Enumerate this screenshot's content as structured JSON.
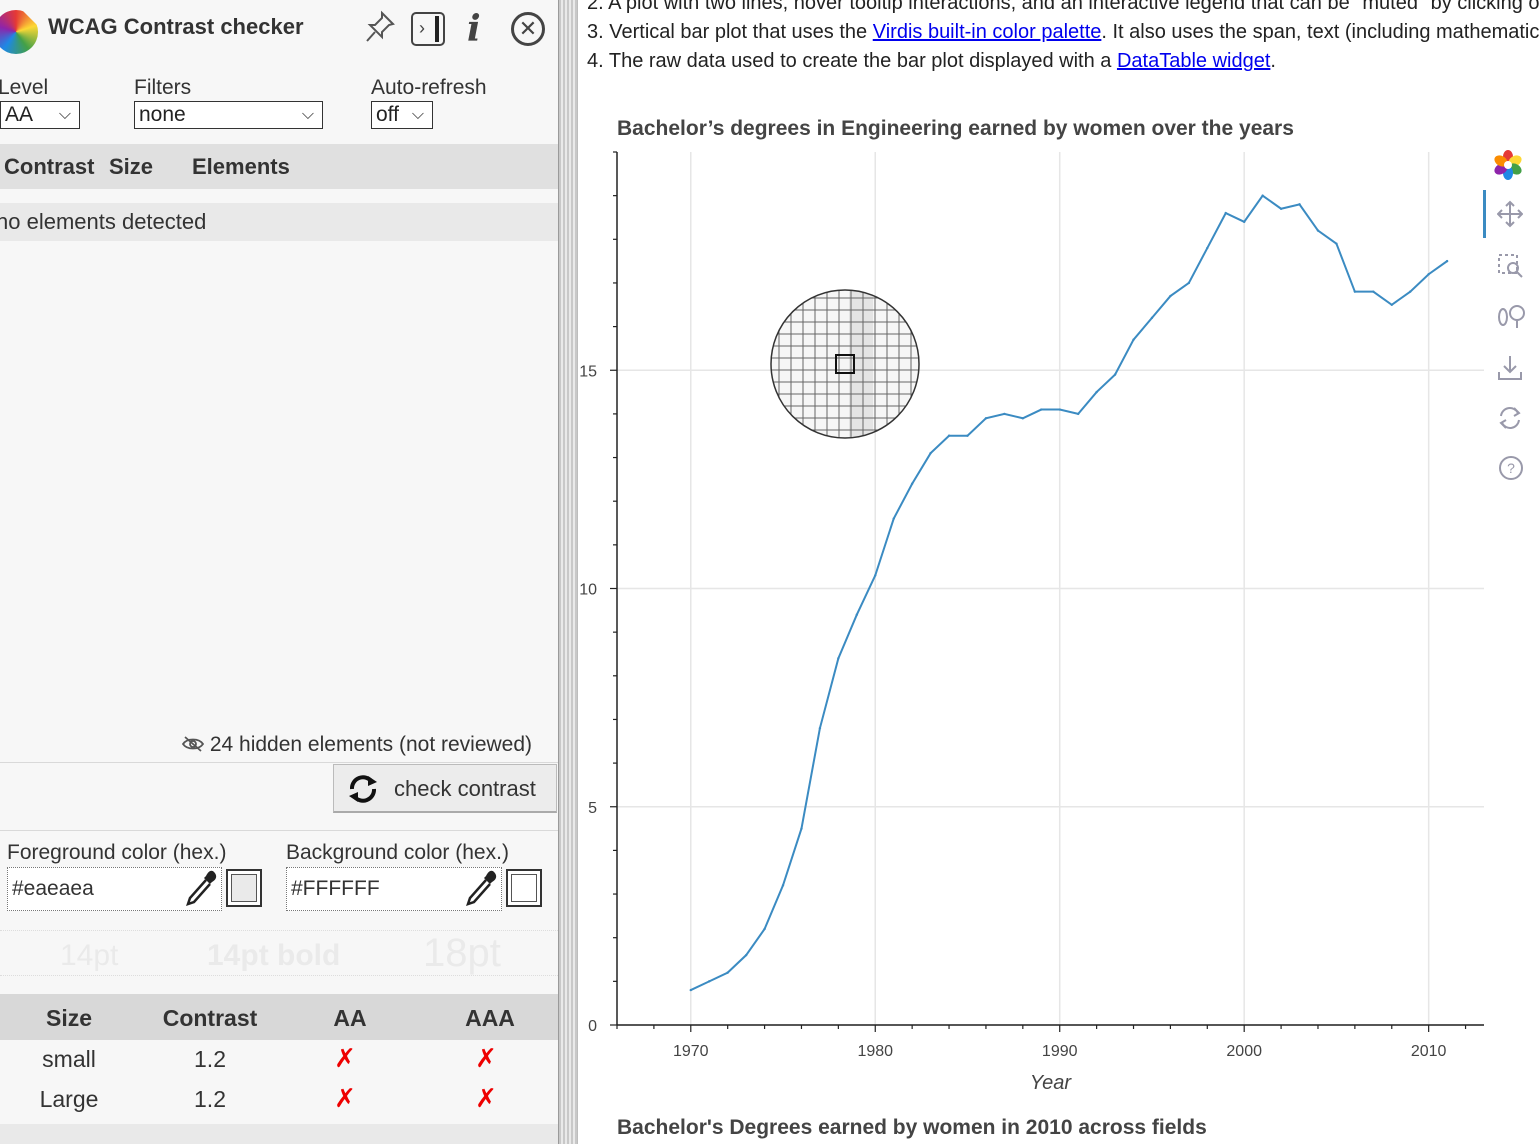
{
  "panel": {
    "title": "WCAG Contrast checker",
    "level_label": "Level",
    "level_value": "AA",
    "filters_label": "Filters",
    "filters_value": "none",
    "autorefresh_label": "Auto-refresh",
    "autorefresh_value": "off",
    "table_headers": [
      "Contrast",
      "Size",
      "Elements"
    ],
    "no_elements": "no elements detected",
    "hidden_note": "24 hidden elements (not reviewed)",
    "check_button": "check contrast",
    "fg_label": "Foreground color (hex.)",
    "fg_value": "#eaeaea",
    "bg_label": "Background color (hex.)",
    "bg_value": "#FFFFFF",
    "preview": [
      "14pt",
      "14pt bold",
      "18pt"
    ],
    "results_headers": [
      "Size",
      "Contrast",
      "AA",
      "AAA"
    ],
    "results": [
      {
        "size": "small",
        "contrast": "1.2",
        "aa": "✗",
        "aaa": "✗"
      },
      {
        "size": "Large",
        "contrast": "1.2",
        "aa": "✗",
        "aaa": "✗"
      }
    ],
    "fail_color": "#e00000",
    "fg_swatch": "#eaeaea",
    "bg_swatch": "#FFFFFF"
  },
  "page": {
    "item2": "2. A plot with two lines, hover tooltip interactions, and an interactive legend that can be \"muted\" by clicking o",
    "item3_pre": "3. Vertical bar plot that uses the ",
    "item3_link": "Virdis built-in color palette",
    "item3_post": ". It also uses the span, text (including mathematic",
    "item4_pre": "4. The raw data used to create the bar plot displayed with a ",
    "item4_link": "DataTable widget",
    "item4_post": ".",
    "chart_title": "Bachelor’s degrees in Engineering earned by women over the years",
    "next_title": "Bachelor's Degrees earned by women in 2010 across fields",
    "toolbar": [
      "bokeh-logo-icon",
      "pan-icon",
      "box-zoom-icon",
      "wheel-zoom-icon",
      "save-icon",
      "reset-icon",
      "help-icon"
    ]
  },
  "chart_data": {
    "type": "line",
    "title": "Bachelor’s degrees in Engineering earned by women over the years",
    "xlabel": "Year",
    "ylabel": "",
    "xlim": [
      1966,
      2013
    ],
    "ylim": [
      0,
      20
    ],
    "xticks": [
      1970,
      1980,
      1990,
      2000,
      2010
    ],
    "yticks": [
      0,
      5,
      10,
      15
    ],
    "grid": true,
    "line_color": "#3b8bc2",
    "x": [
      1970,
      1971,
      1972,
      1973,
      1974,
      1975,
      1976,
      1977,
      1978,
      1979,
      1980,
      1981,
      1982,
      1983,
      1984,
      1985,
      1986,
      1987,
      1988,
      1989,
      1990,
      1991,
      1992,
      1993,
      1994,
      1995,
      1996,
      1997,
      1998,
      1999,
      2000,
      2001,
      2002,
      2003,
      2004,
      2005,
      2006,
      2007,
      2008,
      2009,
      2010,
      2011
    ],
    "y": [
      0.8,
      1.0,
      1.2,
      1.6,
      2.2,
      3.2,
      4.5,
      6.8,
      8.4,
      9.4,
      10.3,
      11.6,
      12.4,
      13.1,
      13.5,
      13.5,
      13.9,
      14.0,
      13.9,
      14.1,
      14.1,
      14.0,
      14.5,
      14.9,
      15.7,
      16.2,
      16.7,
      17.0,
      17.8,
      18.6,
      18.4,
      19.0,
      18.7,
      18.8,
      18.2,
      17.9,
      16.8,
      16.8,
      16.5,
      16.8,
      17.2,
      17.5
    ]
  }
}
